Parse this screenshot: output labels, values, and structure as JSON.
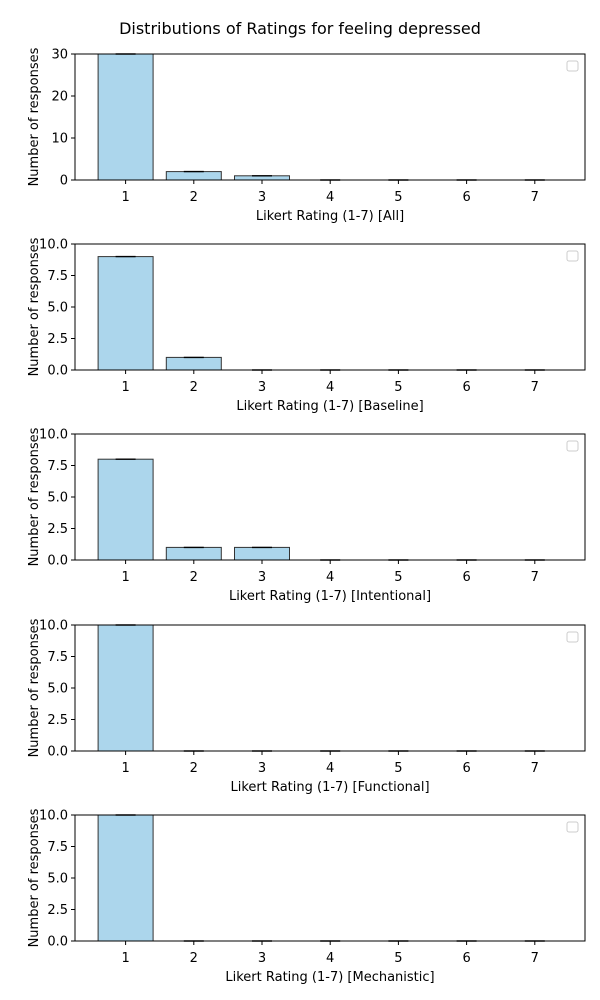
{
  "figure_title": "Distributions of Ratings for feeling depressed",
  "colors": {
    "bar_fill": "#acd6ec",
    "bar_stroke": "#333333",
    "axis": "#000000",
    "legend_box": "#cccccc"
  },
  "chart_data": [
    {
      "type": "bar",
      "xlabel": "Likert Rating (1-7) [All]",
      "ylabel": "Number of responses",
      "categories": [
        "1",
        "2",
        "3",
        "4",
        "5",
        "6",
        "7"
      ],
      "values": [
        30,
        2,
        1,
        0,
        0,
        0,
        0
      ],
      "ylim": [
        0,
        30
      ],
      "yticks": [
        "0",
        "10",
        "20",
        "30"
      ],
      "legend": "empty box, top-right",
      "grid": false
    },
    {
      "type": "bar",
      "xlabel": "Likert Rating (1-7) [Baseline]",
      "ylabel": "Number of responses",
      "categories": [
        "1",
        "2",
        "3",
        "4",
        "5",
        "6",
        "7"
      ],
      "values": [
        9,
        1,
        0,
        0,
        0,
        0,
        0
      ],
      "ylim": [
        0,
        10
      ],
      "yticks": [
        "0.0",
        "2.5",
        "5.0",
        "7.5",
        "10.0"
      ],
      "legend": "empty box, top-right",
      "grid": false
    },
    {
      "type": "bar",
      "xlabel": "Likert Rating (1-7) [Intentional]",
      "ylabel": "Number of responses",
      "categories": [
        "1",
        "2",
        "3",
        "4",
        "5",
        "6",
        "7"
      ],
      "values": [
        8,
        1,
        1,
        0,
        0,
        0,
        0
      ],
      "ylim": [
        0,
        10
      ],
      "yticks": [
        "0.0",
        "2.5",
        "5.0",
        "7.5",
        "10.0"
      ],
      "legend": "empty box, top-right",
      "grid": false
    },
    {
      "type": "bar",
      "xlabel": "Likert Rating (1-7) [Functional]",
      "ylabel": "Number of responses",
      "categories": [
        "1",
        "2",
        "3",
        "4",
        "5",
        "6",
        "7"
      ],
      "values": [
        10,
        0,
        0,
        0,
        0,
        0,
        0
      ],
      "ylim": [
        0,
        10
      ],
      "yticks": [
        "0.0",
        "2.5",
        "5.0",
        "7.5",
        "10.0"
      ],
      "legend": "empty box, top-right",
      "grid": false
    },
    {
      "type": "bar",
      "xlabel": "Likert Rating (1-7) [Mechanistic]",
      "ylabel": "Number of responses",
      "categories": [
        "1",
        "2",
        "3",
        "4",
        "5",
        "6",
        "7"
      ],
      "values": [
        10,
        0,
        0,
        0,
        0,
        0,
        0
      ],
      "ylim": [
        0,
        10
      ],
      "yticks": [
        "0.0",
        "2.5",
        "5.0",
        "7.5",
        "10.0"
      ],
      "legend": "empty box, top-right",
      "grid": false
    }
  ]
}
